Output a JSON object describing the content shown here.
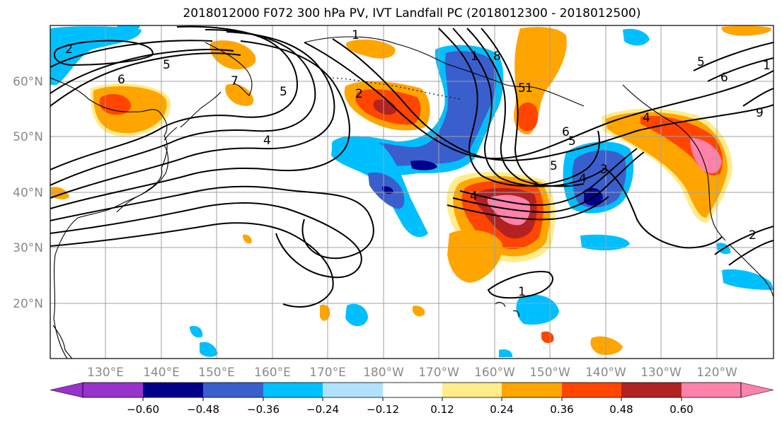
{
  "title": "2018012000 F072 300 hPa PV, IVT Landfall PC (2018012300 - 2018012500)",
  "map": {
    "lon_ticks": [
      "130°E",
      "140°E",
      "150°E",
      "160°E",
      "170°E",
      "180°W",
      "170°W",
      "160°W",
      "150°W",
      "140°W",
      "130°W",
      "120°W"
    ],
    "lat_ticks": [
      "60°N",
      "50°N",
      "40°N",
      "30°N",
      "20°N"
    ],
    "grid": true
  },
  "colorbar": {
    "colors": [
      "#9932cc",
      "#00008b",
      "#3a5fcd",
      "#00bfff",
      "#b0e2ff",
      "#ffffff",
      "#ffec8b",
      "#ffa500",
      "#ff4500",
      "#b22222",
      "#ff82ab"
    ],
    "labels": [
      "−0.60",
      "−0.48",
      "−0.36",
      "−0.24",
      "−0.12",
      "0.12",
      "0.24",
      "0.36",
      "0.48",
      "0.60"
    ],
    "extend": "both"
  },
  "contour_labels": [
    "2",
    "6",
    "5",
    "7",
    "1",
    "4",
    "5",
    "2",
    "1",
    "8",
    "5",
    "1",
    "6",
    "5",
    "5",
    "4",
    "3",
    "4",
    "1",
    "5",
    "6",
    "4",
    "9",
    "2",
    "1"
  ]
}
